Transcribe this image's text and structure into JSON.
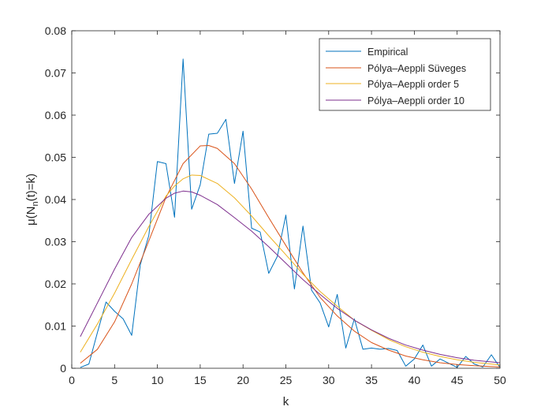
{
  "chart_data": {
    "type": "line",
    "xlabel": "k",
    "ylabel": "μ(N_n(t)=k)",
    "ylabel_parts": {
      "prefix": "μ(N",
      "sub": "n",
      "suffix": "(t)=k)"
    },
    "xlim": [
      0,
      50
    ],
    "ylim": [
      0,
      0.08
    ],
    "x_ticks": [
      0,
      5,
      10,
      15,
      20,
      25,
      30,
      35,
      40,
      45,
      50
    ],
    "y_ticks": [
      0,
      0.01,
      0.02,
      0.03,
      0.04,
      0.05,
      0.06,
      0.07,
      0.08
    ],
    "x_tick_labels": [
      "0",
      "5",
      "10",
      "15",
      "20",
      "25",
      "30",
      "35",
      "40",
      "45",
      "50"
    ],
    "y_tick_labels": [
      "0",
      "0.01",
      "0.02",
      "0.03",
      "0.04",
      "0.05",
      "0.06",
      "0.07",
      "0.08"
    ],
    "grid": false,
    "legend_position": "top-right",
    "series": [
      {
        "name": "Empirical",
        "color": "#0072BD",
        "x": [
          1,
          2,
          3,
          4,
          5,
          6,
          7,
          8,
          9,
          10,
          11,
          12,
          13,
          14,
          15,
          16,
          17,
          18,
          19,
          20,
          21,
          22,
          23,
          24,
          25,
          26,
          27,
          28,
          29,
          30,
          31,
          32,
          33,
          34,
          35,
          36,
          37,
          38,
          39,
          40,
          41,
          42,
          43,
          44,
          45,
          46,
          47,
          48,
          49,
          50
        ],
        "y": [
          0.0002,
          0.001,
          0.0085,
          0.0157,
          0.0135,
          0.0117,
          0.0078,
          0.0245,
          0.0315,
          0.049,
          0.0485,
          0.0358,
          0.0733,
          0.0377,
          0.0435,
          0.0555,
          0.0557,
          0.059,
          0.0438,
          0.0562,
          0.0332,
          0.0323,
          0.0225,
          0.0265,
          0.0363,
          0.0188,
          0.0337,
          0.0185,
          0.0155,
          0.0098,
          0.0175,
          0.0048,
          0.0117,
          0.0045,
          0.0048,
          0.0045,
          0.0047,
          0.0042,
          0.0005,
          0.0022,
          0.0055,
          0.0005,
          0.0022,
          0.0012,
          0.0002,
          0.0028,
          0.001,
          0.0003,
          0.0032,
          0.0002
        ]
      },
      {
        "name": "Pólya–Aeppli Süveges",
        "color": "#D95319",
        "x": [
          1,
          3,
          5,
          7,
          9,
          11,
          13,
          15,
          16,
          17,
          19,
          21,
          23,
          25,
          27,
          29,
          31,
          33,
          35,
          37,
          39,
          41,
          43,
          45,
          47,
          50
        ],
        "y": [
          0.0012,
          0.0045,
          0.011,
          0.02,
          0.0302,
          0.0405,
          0.0485,
          0.0527,
          0.0528,
          0.0521,
          0.0485,
          0.0425,
          0.0357,
          0.0291,
          0.0226,
          0.0168,
          0.0124,
          0.0088,
          0.0061,
          0.0043,
          0.0029,
          0.002,
          0.0013,
          0.0009,
          0.0006,
          0.0003
        ]
      },
      {
        "name": "Pólya–Aeppli order 5",
        "color": "#EDB120",
        "x": [
          1,
          3,
          5,
          7,
          9,
          11,
          12,
          13,
          14,
          15,
          17,
          19,
          21,
          23,
          25,
          27,
          29,
          31,
          33,
          35,
          37,
          39,
          41,
          43,
          45,
          47,
          50
        ],
        "y": [
          0.0038,
          0.0105,
          0.0178,
          0.0258,
          0.0336,
          0.0408,
          0.0432,
          0.0449,
          0.0458,
          0.0457,
          0.0438,
          0.0404,
          0.0361,
          0.0314,
          0.0269,
          0.0223,
          0.0182,
          0.0147,
          0.0114,
          0.009,
          0.0068,
          0.0051,
          0.0038,
          0.0028,
          0.002,
          0.0014,
          0.0008
        ]
      },
      {
        "name": "Pólya–Aeppli order 10",
        "color": "#7E2F8E",
        "x": [
          1,
          3,
          5,
          7,
          9,
          11,
          12,
          13,
          14,
          15,
          17,
          19,
          21,
          23,
          25,
          27,
          29,
          31,
          33,
          35,
          37,
          39,
          41,
          43,
          45,
          47,
          50
        ],
        "y": [
          0.0075,
          0.0155,
          0.0235,
          0.031,
          0.0365,
          0.0403,
          0.0415,
          0.042,
          0.0418,
          0.041,
          0.0388,
          0.0357,
          0.0325,
          0.0288,
          0.0249,
          0.021,
          0.0175,
          0.0142,
          0.0114,
          0.0091,
          0.0071,
          0.0055,
          0.0043,
          0.0033,
          0.0025,
          0.0019,
          0.0013
        ]
      }
    ]
  }
}
